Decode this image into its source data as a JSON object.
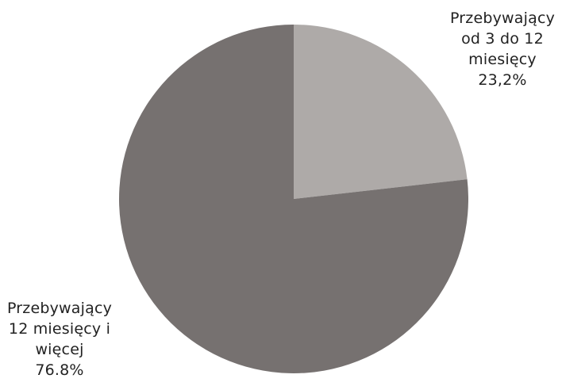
{
  "chart_data": {
    "type": "pie",
    "title": "",
    "start_angle_deg": 0,
    "direction": "clockwise",
    "slices": [
      {
        "label_lines": [
          "Przebywający",
          "od 3 do 12",
          "miesięcy"
        ],
        "value_label": "23,2%",
        "value": 23.2,
        "color": "#aeaaa8"
      },
      {
        "label_lines": [
          "Przebywający",
          "12 miesięcy i",
          "więcej"
        ],
        "value_label": "76.8%",
        "value": 76.8,
        "color": "#767170"
      }
    ],
    "legend": "none",
    "labels_placement": "outside"
  }
}
